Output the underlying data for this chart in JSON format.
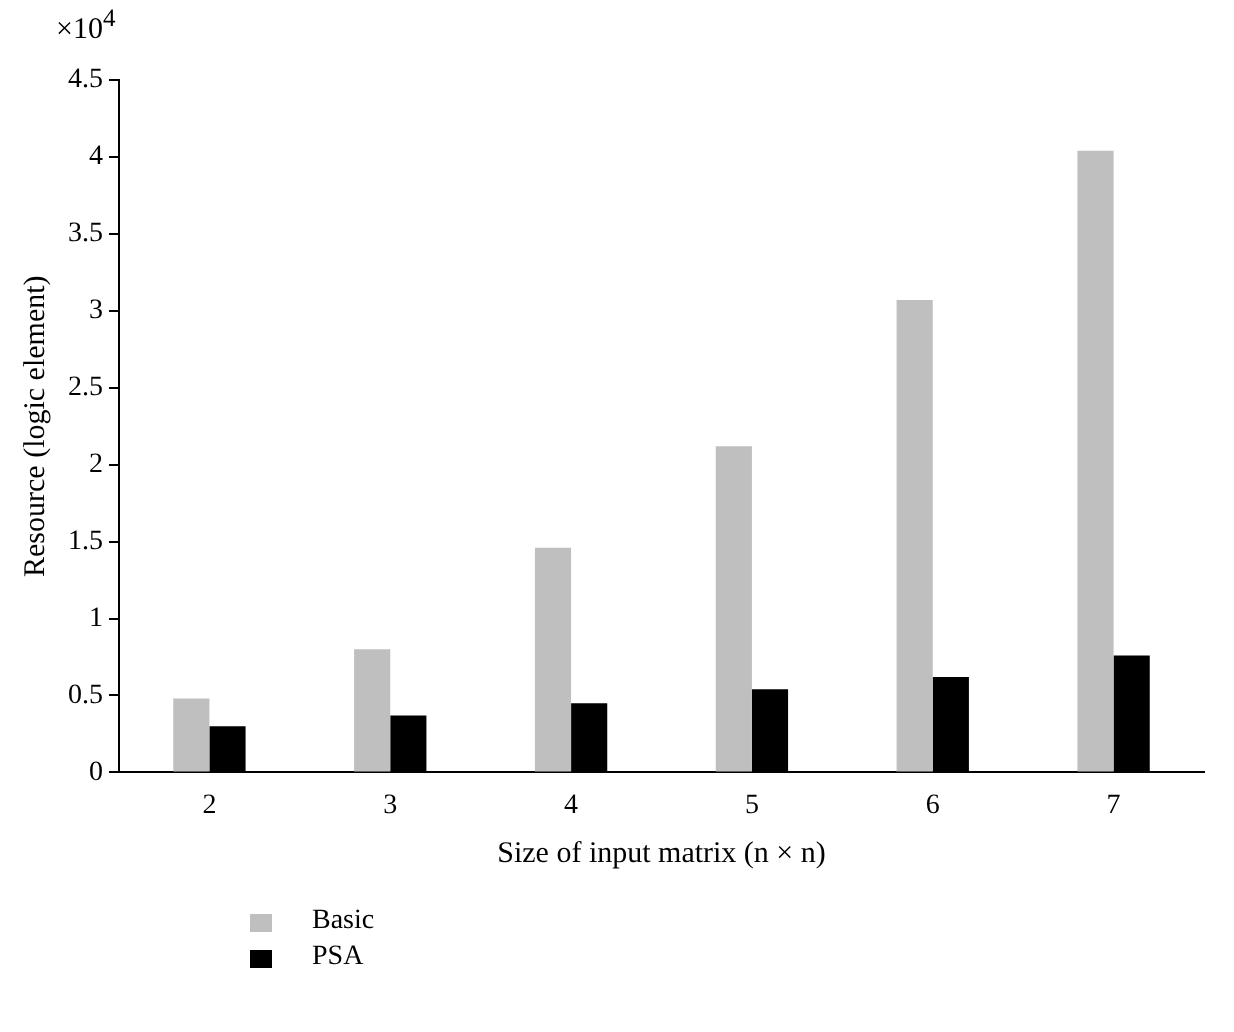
{
  "chart_data": {
    "type": "bar",
    "xlabel": "Size of input matrix (n × n)",
    "ylabel": "Resource (logic element)",
    "annotations": [
      "×10$^{4}$"
    ],
    "categories": [
      "2",
      "3",
      "4",
      "5",
      "6",
      "7"
    ],
    "series": [
      {
        "name": "Basic",
        "color": "#bfbfbf",
        "values": [
          0.48,
          0.8,
          1.46,
          2.12,
          3.07,
          4.04
        ]
      },
      {
        "name": "PSA",
        "color": "#000000",
        "values": [
          0.3,
          0.37,
          0.45,
          0.54,
          0.62,
          0.76
        ]
      }
    ],
    "ylim": [
      0,
      4.5
    ],
    "yticks": [
      0,
      0.5,
      1,
      1.5,
      2,
      2.5,
      3,
      3.5,
      4,
      4.5
    ],
    "grid": false,
    "legend": "bottom left"
  }
}
